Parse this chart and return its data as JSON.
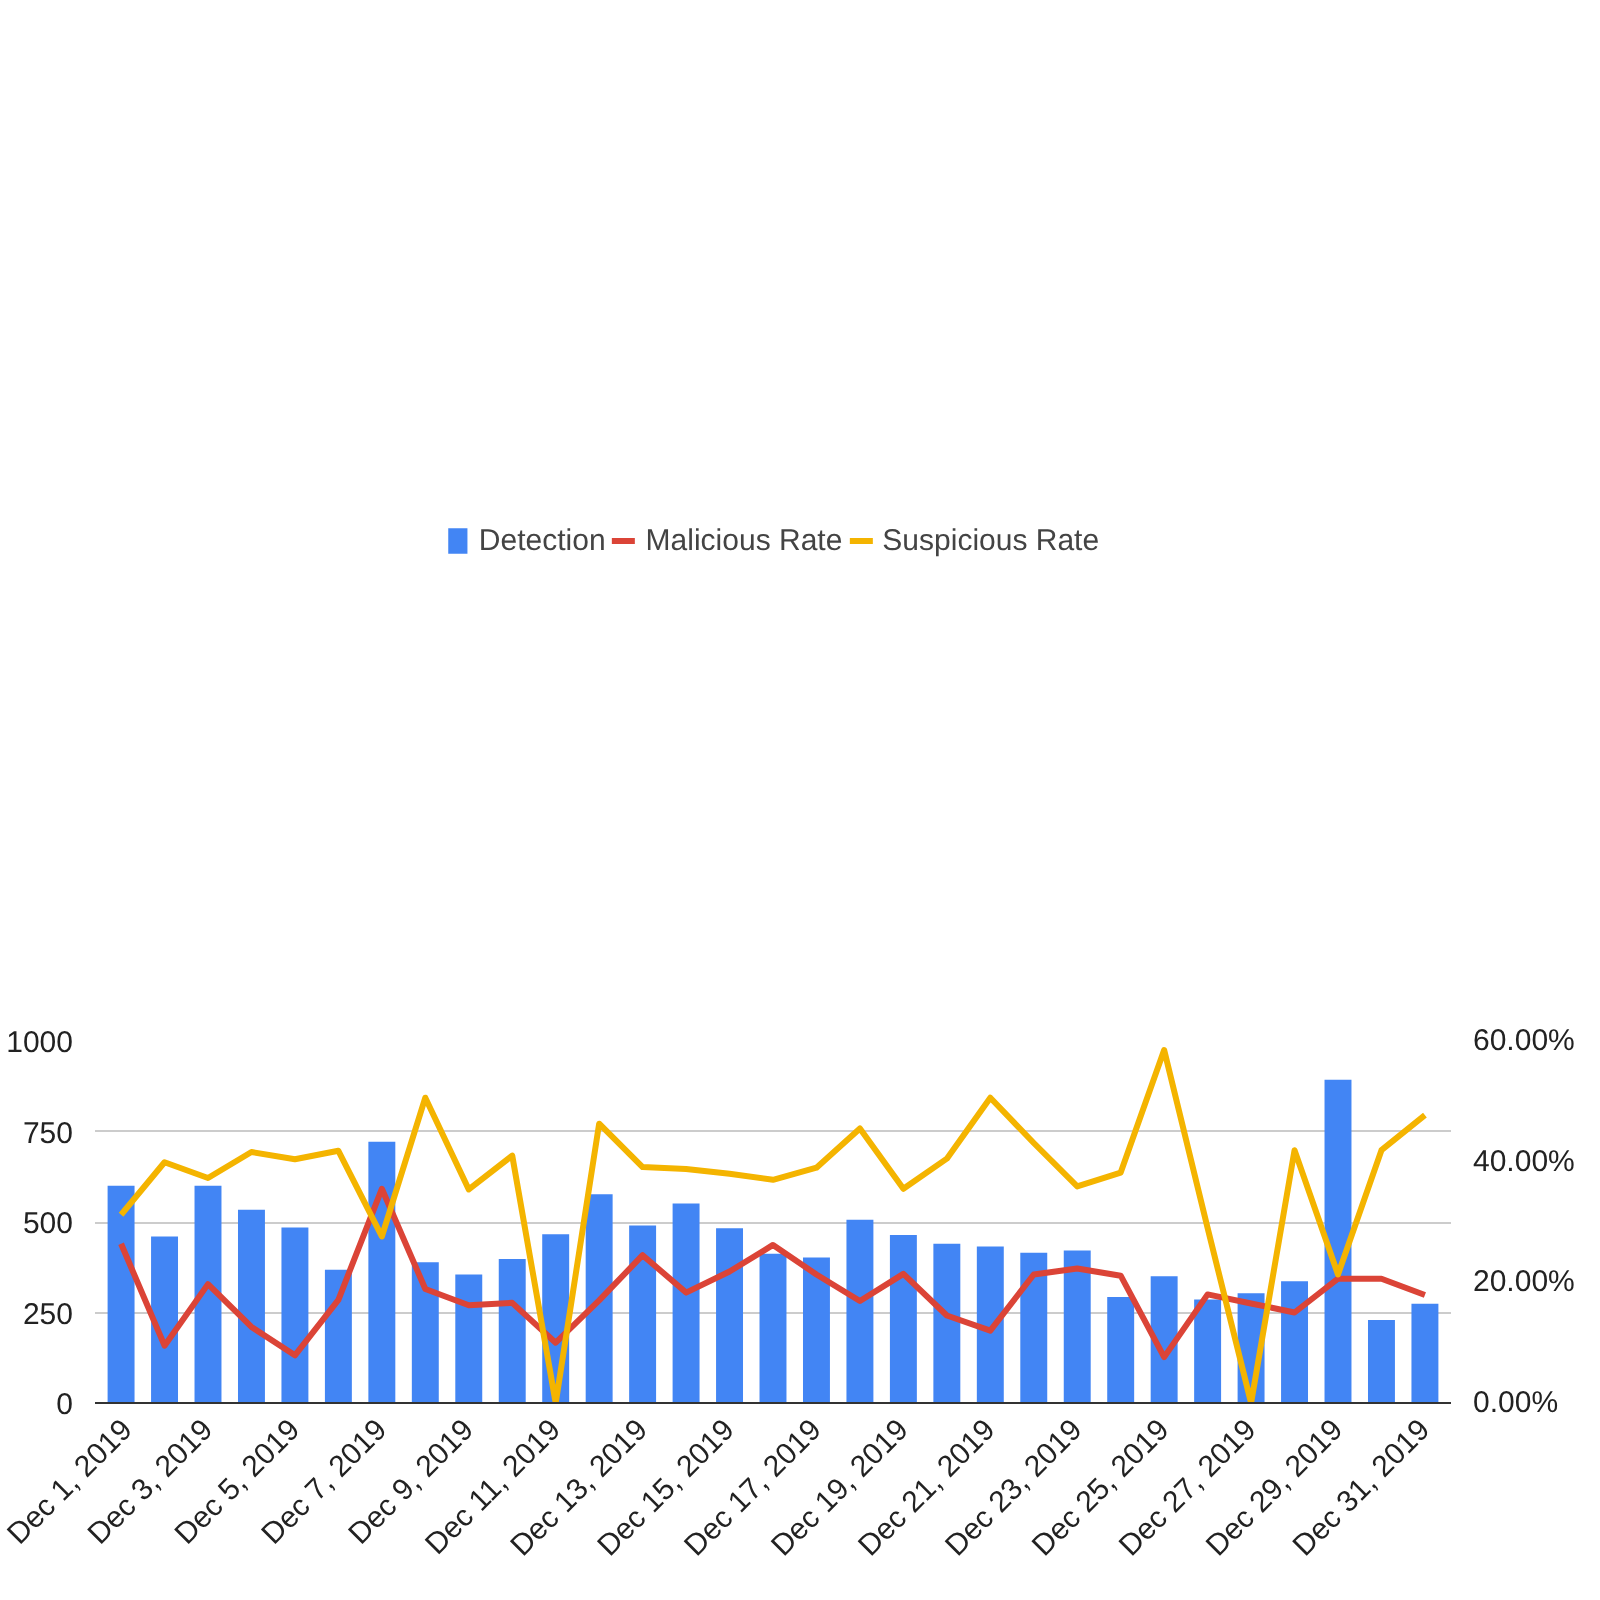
{
  "chart_data": {
    "type": "bar",
    "categories": [
      "Dec 1, 2019",
      null,
      "Dec 3, 2019",
      null,
      "Dec 5, 2019",
      null,
      "Dec 7, 2019",
      null,
      "Dec 9, 2019",
      null,
      "Dec 11, 2019",
      null,
      "Dec 13, 2019",
      null,
      "Dec 15, 2019",
      null,
      "Dec 17, 2019",
      null,
      "Dec 19, 2019",
      null,
      "Dec 21, 2019",
      null,
      "Dec 23, 2019",
      null,
      "Dec 25, 2019",
      null,
      "Dec 27, 2019",
      null,
      "Dec 29, 2019",
      null,
      "Dec 31, 2019"
    ],
    "series": [
      {
        "name": "Detection",
        "color": "#4285f4",
        "values": [
          600,
          460,
          600,
          534,
          485,
          368,
          722,
          389,
          355,
          398,
          466,
          577,
          490,
          551,
          483,
          412,
          402,
          506,
          464,
          440,
          432,
          415,
          421,
          293,
          350,
          286,
          303,
          336,
          893,
          229,
          274
        ]
      },
      {
        "name": "Malicious Rate",
        "color": "#db4437",
        "type": "line",
        "axis": "y2",
        "values": [
          26.4,
          9.5,
          19.7,
          12.6,
          7.9,
          17.1,
          35.5,
          18.9,
          16.2,
          16.6,
          10.0,
          17.0,
          24.5,
          18.3,
          21.8,
          26.2,
          21.3,
          16.9,
          21.4,
          14.5,
          12.0,
          21.3,
          22.3,
          21.1,
          7.6,
          18.0,
          16.5,
          15.0,
          20.6,
          20.6,
          17.9
        ]
      },
      {
        "name": "Suspicious Rate",
        "color": "#f4b400",
        "type": "line",
        "axis": "y2",
        "values": [
          31.2,
          39.9,
          37.3,
          41.6,
          40.4,
          41.8,
          27.6,
          50.6,
          35.4,
          41.0,
          0,
          46.3,
          39.1,
          38.8,
          38.0,
          37.0,
          39.0,
          45.5,
          35.5,
          40.5,
          50.6,
          43.1,
          35.9,
          38.2,
          58.5,
          29,
          0,
          41.9,
          21.3,
          41.9,
          47.7
        ]
      }
    ],
    "ylim": [
      0,
      1000
    ],
    "yticks": [
      0,
      250,
      500,
      750,
      1000
    ],
    "y2lim": [
      0,
      60
    ],
    "y2ticks": [
      {
        "value": 0,
        "label": "0.00%"
      },
      {
        "value": 20,
        "label": "20.00%"
      },
      {
        "value": 40,
        "label": "40.00%"
      },
      {
        "value": 60,
        "label": "60.00%"
      }
    ],
    "grid": "y",
    "legend": "top"
  }
}
